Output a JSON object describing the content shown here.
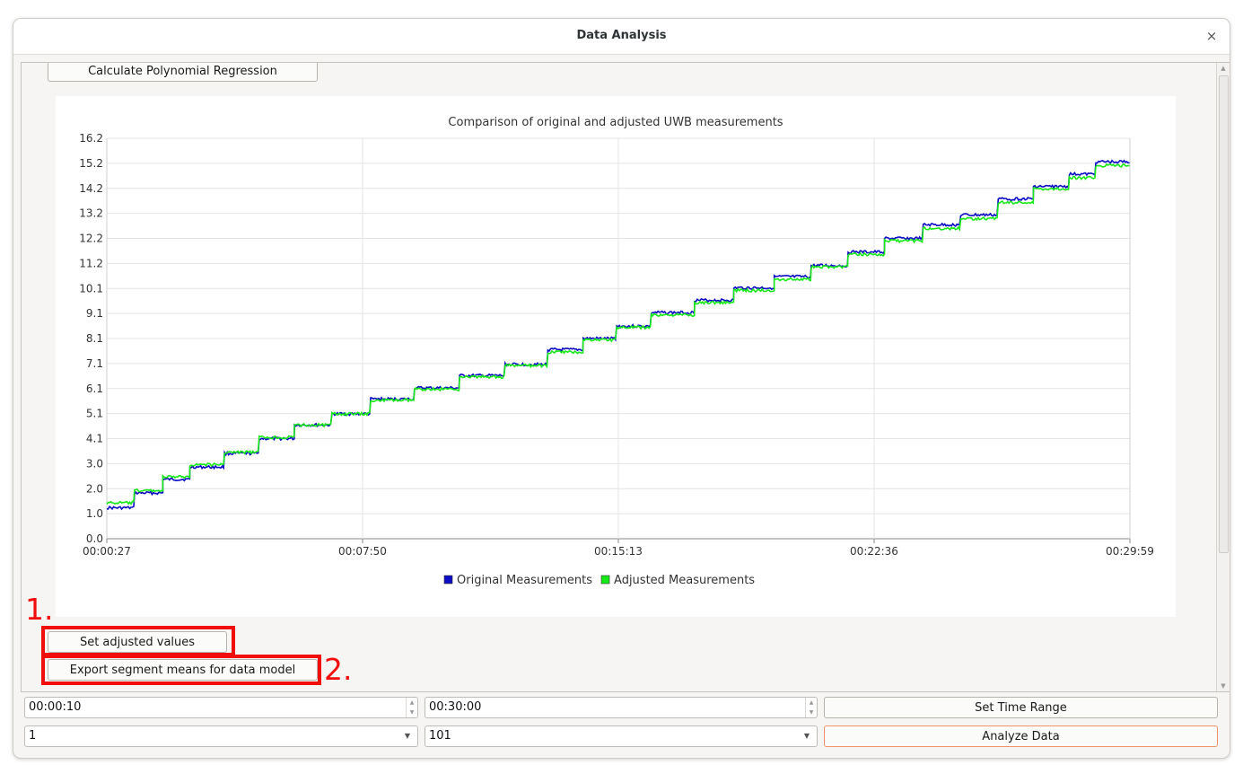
{
  "window": {
    "title": "Data Analysis"
  },
  "buttons": {
    "calculate": "Calculate Polynomial Regression",
    "set_adjusted": "Set adjusted values",
    "export_segments": "Export segment means for data model",
    "set_time_range": "Set Time Range",
    "analyze": "Analyze Data"
  },
  "annotations": {
    "one": "1.",
    "two": "2."
  },
  "controls": {
    "start_time": "00:00:10",
    "end_time": "00:30:00",
    "select_a": "1",
    "select_b": "101"
  },
  "colors": {
    "original": "#0c0cc4",
    "adjusted": "#17e817",
    "annotation": "#f20d0d",
    "analyze_border": "#f0936b"
  },
  "chart_data": {
    "type": "line",
    "title": "Comparison of original and adjusted UWB measurements",
    "x_range": [
      "00:00:27",
      "00:29:59"
    ],
    "x_ticks": [
      "00:00:27",
      "00:07:50",
      "00:15:13",
      "00:22:36",
      "00:29:59"
    ],
    "y_ticks": [
      "0.0",
      "1.0",
      "2.0",
      "3.0",
      "4.1",
      "5.1",
      "6.1",
      "7.1",
      "8.1",
      "9.1",
      "10.1",
      "11.2",
      "12.2",
      "13.2",
      "14.2",
      "15.2",
      "16.2"
    ],
    "ylim": [
      0,
      16.2
    ],
    "grid": true,
    "legend_position": "bottom-center",
    "series": [
      {
        "name": "Original Measurements",
        "steps_time": [
          "00:00:27",
          "00:01:15",
          "00:02:04",
          "00:02:51",
          "00:03:51",
          "00:04:51",
          "00:05:52",
          "00:06:57",
          "00:08:04",
          "00:09:20",
          "00:10:38",
          "00:11:57",
          "00:13:11",
          "00:14:12",
          "00:15:10",
          "00:16:10",
          "00:17:25",
          "00:18:33",
          "00:19:43",
          "00:20:47",
          "00:21:51",
          "00:22:54",
          "00:24:01",
          "00:25:06",
          "00:26:11",
          "00:27:12",
          "00:28:14",
          "00:29:00",
          "00:29:59"
        ],
        "steps_value": [
          1.25,
          1.85,
          2.4,
          2.9,
          3.45,
          4.05,
          4.6,
          5.05,
          5.65,
          6.1,
          6.6,
          7.05,
          7.65,
          8.1,
          8.6,
          9.15,
          9.65,
          10.15,
          10.6,
          11.05,
          11.6,
          12.15,
          12.7,
          13.1,
          13.75,
          14.25,
          14.75,
          15.25
        ]
      },
      {
        "name": "Adjusted Measurements",
        "steps_time": [
          "00:00:27",
          "00:01:15",
          "00:02:04",
          "00:02:51",
          "00:03:51",
          "00:04:51",
          "00:05:52",
          "00:06:57",
          "00:08:04",
          "00:09:20",
          "00:10:38",
          "00:11:57",
          "00:13:11",
          "00:14:12",
          "00:15:10",
          "00:16:10",
          "00:17:25",
          "00:18:33",
          "00:19:43",
          "00:20:47",
          "00:21:51",
          "00:22:54",
          "00:24:01",
          "00:25:06",
          "00:26:11",
          "00:27:12",
          "00:28:14",
          "00:29:00",
          "00:29:59"
        ],
        "steps_value": [
          1.45,
          1.95,
          2.5,
          3.0,
          3.5,
          4.1,
          4.6,
          5.05,
          5.6,
          6.05,
          6.55,
          7.0,
          7.55,
          8.05,
          8.55,
          9.05,
          9.55,
          10.05,
          10.5,
          11.0,
          11.5,
          12.05,
          12.55,
          12.95,
          13.6,
          14.15,
          14.6,
          15.1
        ]
      }
    ]
  }
}
